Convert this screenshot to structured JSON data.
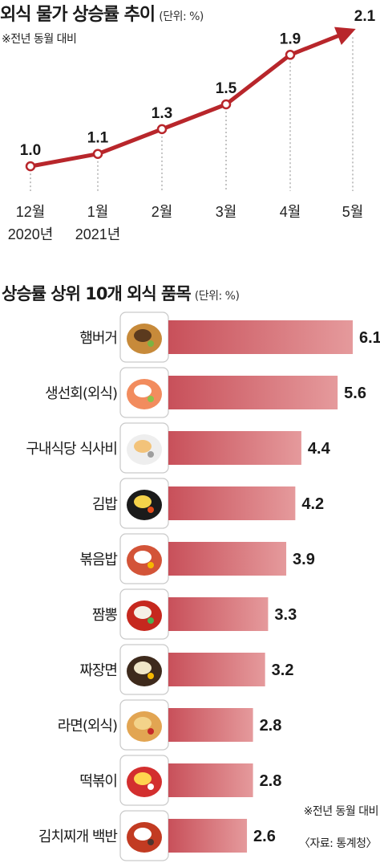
{
  "top_chart": {
    "title": "외식 물가 상승률 추이",
    "unit": "(단위: %)",
    "note": "※전년 동월 대비"
  },
  "bottom_chart": {
    "title": "상승률 상위 10개 외식 품목",
    "unit": "(단위: %)"
  },
  "footer": {
    "note": "※전년 동월 대비",
    "source": "〈자료: 통계청〉"
  },
  "colors": {
    "line": "#b8262b",
    "bar_start": "#c8505a",
    "bar_end": "#e59a9c",
    "guide": "#888888"
  },
  "chart_data": [
    {
      "type": "line",
      "title": "외식 물가 상승률 추이",
      "unit": "%",
      "categories": [
        "12월 2020년",
        "1월 2021년",
        "2월",
        "3월",
        "4월",
        "5월"
      ],
      "category_lines": [
        [
          "12월",
          "2020년"
        ],
        [
          "1월",
          "2021년"
        ],
        [
          "2월"
        ],
        [
          "3월"
        ],
        [
          "4월"
        ],
        [
          "5월"
        ]
      ],
      "values": [
        1.0,
        1.1,
        1.3,
        1.5,
        1.9,
        2.1
      ],
      "value_labels": [
        "1.0",
        "1.1",
        "1.3",
        "1.5",
        "1.9",
        "2.1"
      ],
      "ylim": [
        0.8,
        2.2
      ],
      "grid": false,
      "last_point_arrow": true
    },
    {
      "type": "bar",
      "orientation": "horizontal",
      "title": "상승률 상위 10개 외식 품목",
      "unit": "%",
      "categories": [
        "햄버거",
        "생선회(외식)",
        "구내식당 식사비",
        "김밥",
        "볶음밥",
        "짬뽕",
        "짜장면",
        "라면(외식)",
        "떡볶이",
        "김치찌개 백반"
      ],
      "values": [
        6.1,
        5.6,
        4.4,
        4.2,
        3.9,
        3.3,
        3.2,
        2.8,
        2.8,
        2.6
      ],
      "value_labels": [
        "6.1",
        "5.6",
        "4.4",
        "4.2",
        "3.9",
        "3.3",
        "3.2",
        "2.8",
        "2.8",
        "2.6"
      ],
      "icons": [
        "hamburger-icon",
        "sashimi-icon",
        "cafeteria-tray-icon",
        "gimbap-icon",
        "fried-rice-icon",
        "jjamppong-icon",
        "jjajangmyeon-icon",
        "ramen-icon",
        "tteokbokki-icon",
        "kimchi-stew-icon"
      ],
      "xlim": [
        0,
        6.1
      ]
    }
  ]
}
